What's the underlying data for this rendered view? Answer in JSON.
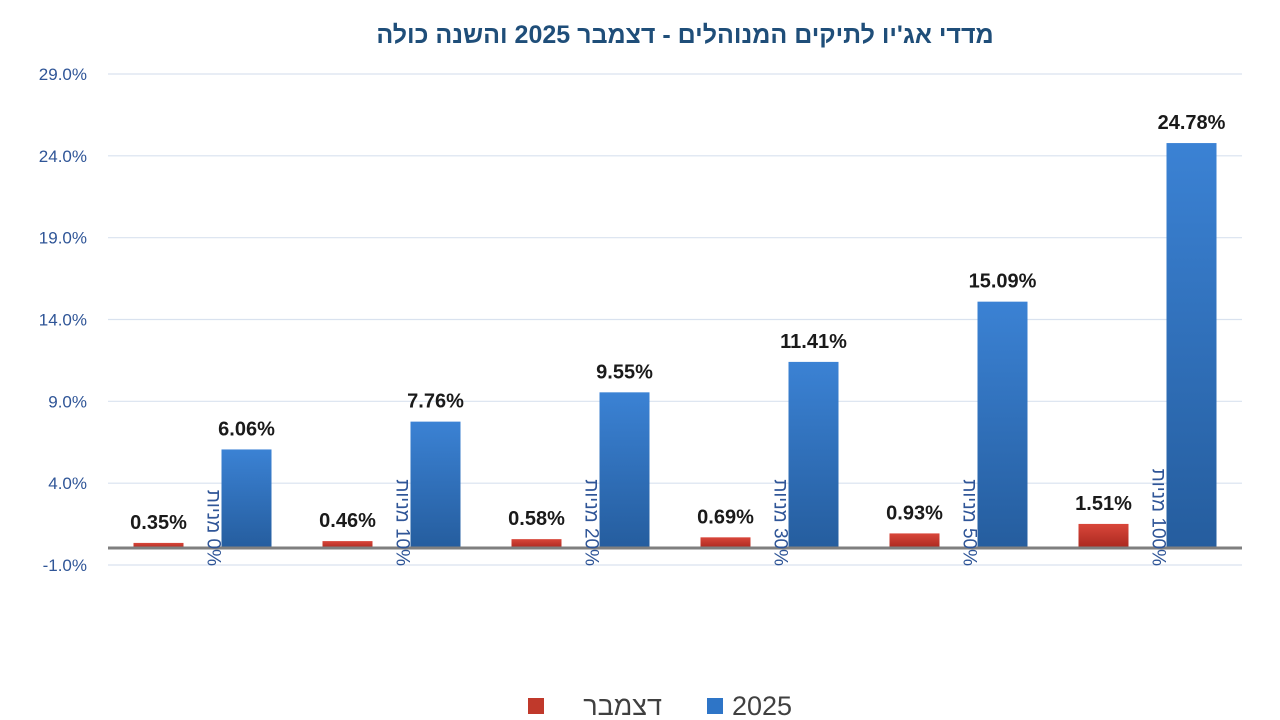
{
  "chart_data": {
    "type": "bar",
    "title": "מדדי אג'יו לתיקים המנוהלים  -  דצמבר 2025 והשנה כולה",
    "categories": [
      "0% מניות",
      "10% מניות",
      "20% מניות",
      "30% מניות",
      "50% מניות",
      "100% מניות"
    ],
    "series": [
      {
        "name": "דצמבר",
        "color": "#c0392b",
        "values": [
          0.35,
          0.46,
          0.58,
          0.69,
          0.93,
          1.51
        ],
        "labels": [
          "0.35%",
          "0.46%",
          "0.58%",
          "0.69%",
          "0.93%",
          "1.51%"
        ]
      },
      {
        "name": "2025",
        "color": "#2e75c7",
        "values": [
          6.06,
          7.76,
          9.55,
          11.41,
          15.09,
          24.78
        ],
        "labels": [
          "6.06%",
          "7.76%",
          "9.55%",
          "11.41%",
          "15.09%",
          "24.78%"
        ]
      }
    ],
    "yticks": [
      -1.0,
      4.0,
      9.0,
      14.0,
      19.0,
      24.0,
      29.0
    ],
    "ytick_labels": [
      "-1.0%",
      "4.0%",
      "9.0%",
      "14.0%",
      "19.0%",
      "24.0%",
      "29.0%"
    ],
    "ylim": [
      -1.0,
      29.0
    ],
    "grid": true,
    "legend": "bottom"
  }
}
